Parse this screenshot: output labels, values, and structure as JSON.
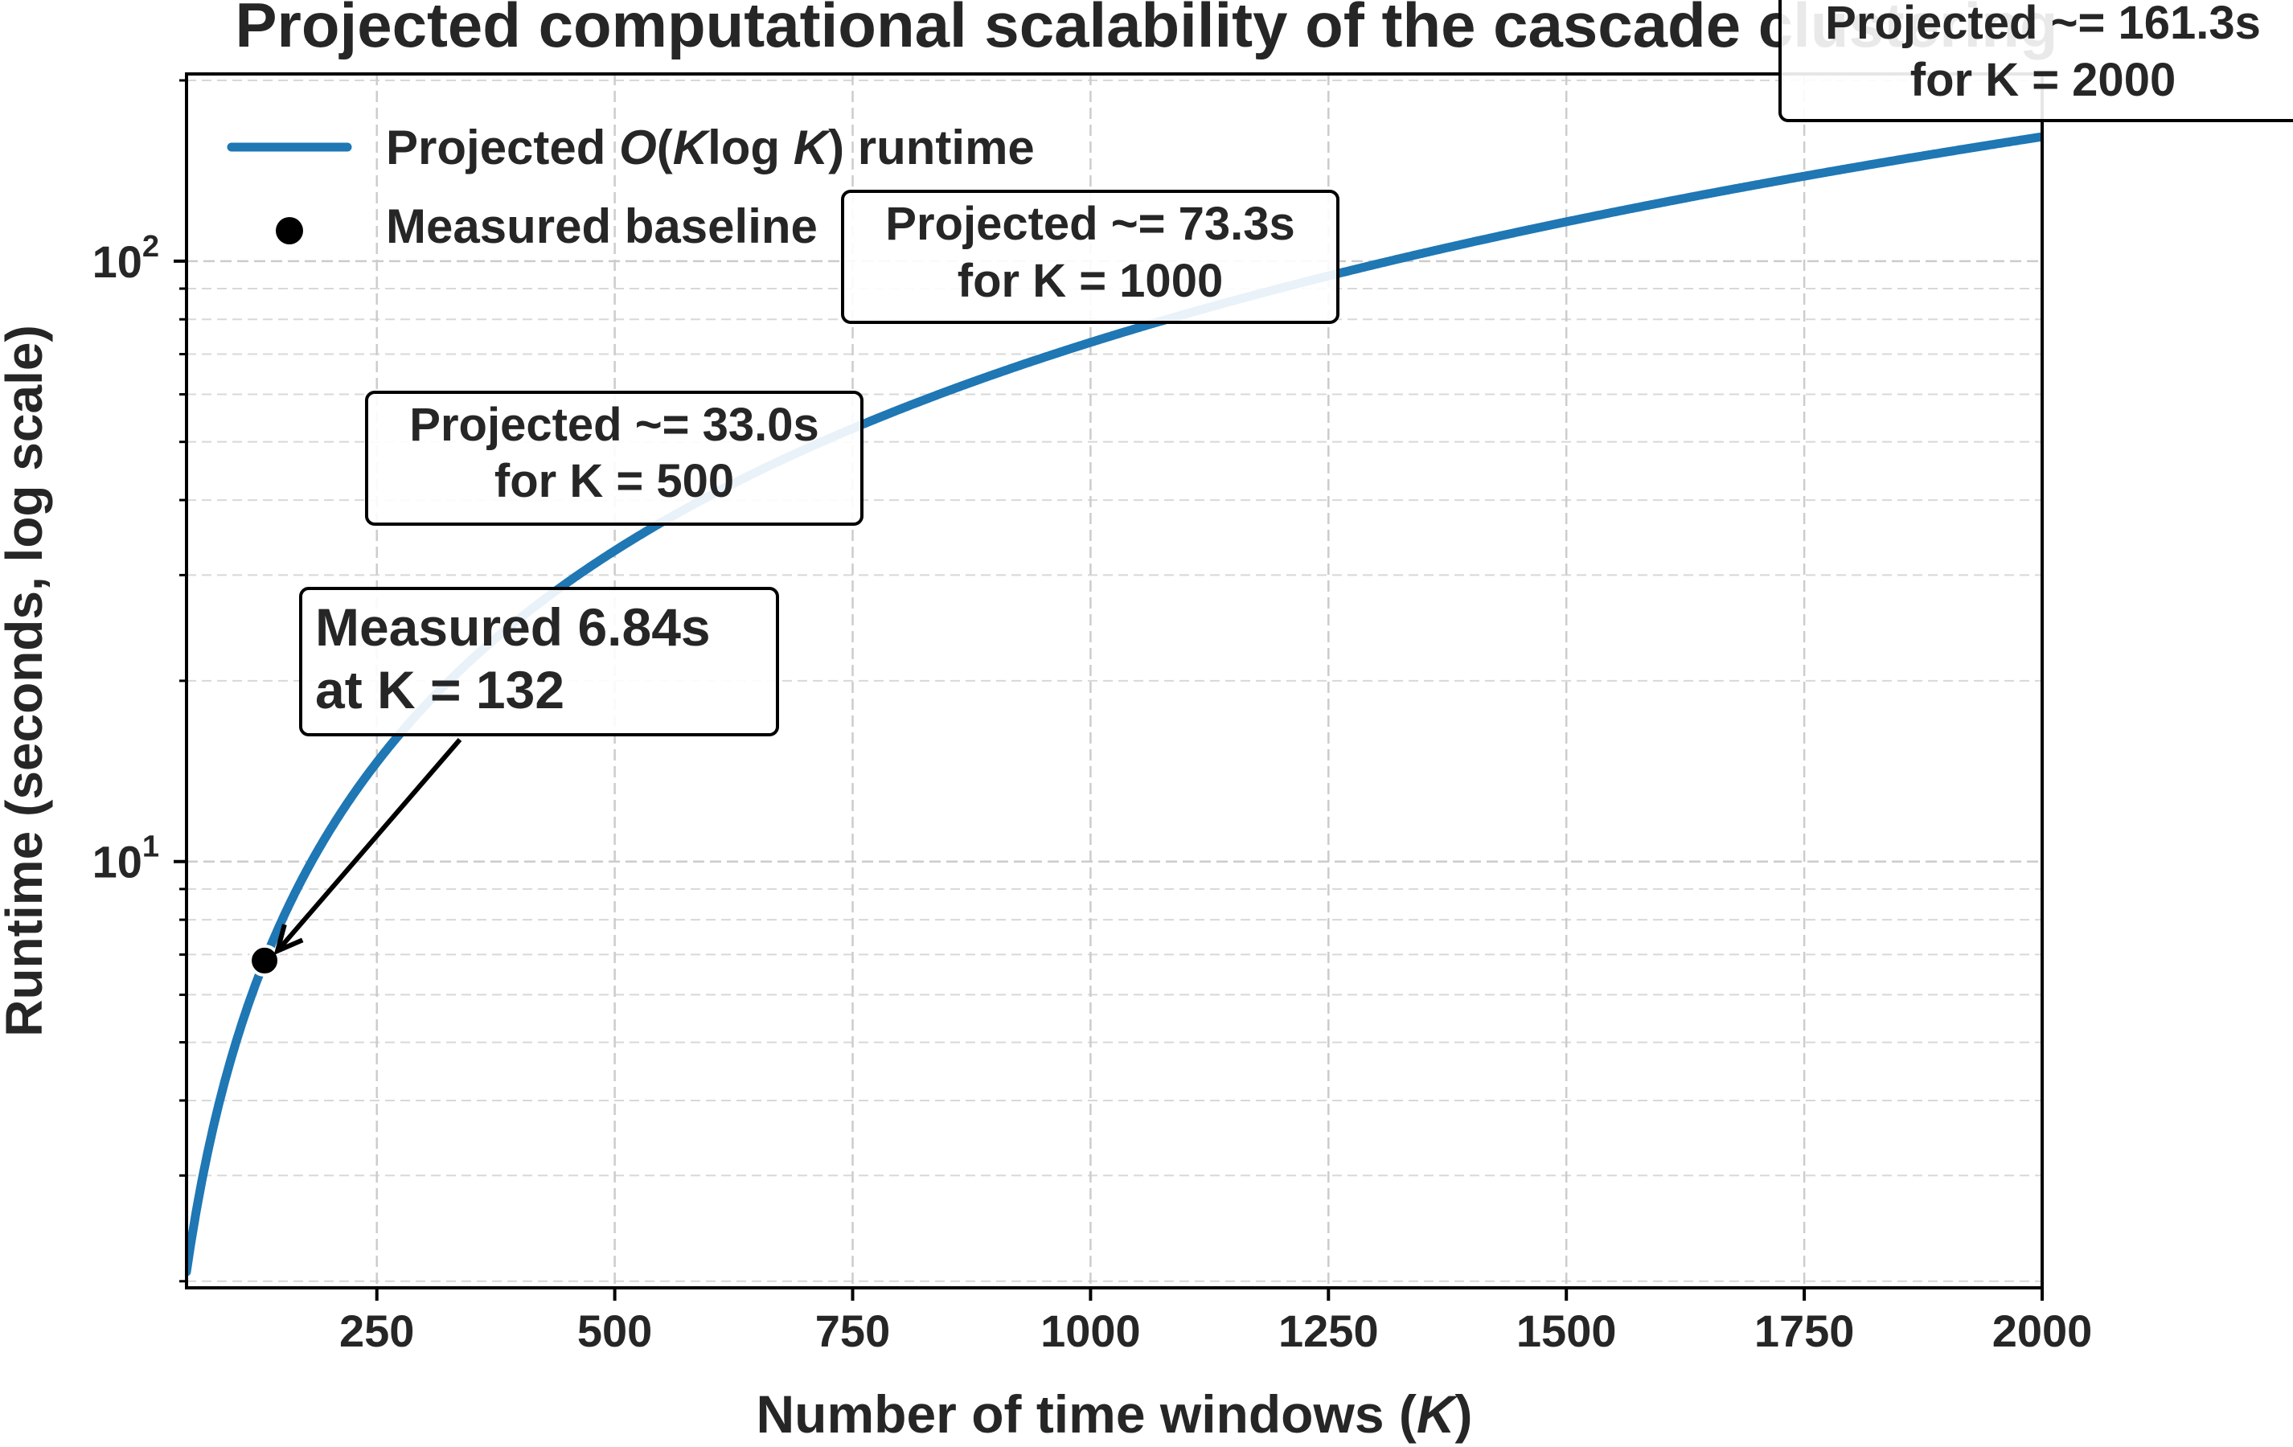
{
  "chart_data": {
    "type": "line",
    "title": "Projected computational scalability of the cascade clustering",
    "xlabel": "Number of time windows (K)",
    "xlabel_parts": {
      "prefix": "Number of time windows (",
      "var": "K",
      "suffix": ")"
    },
    "ylabel": "Runtime (seconds, log scale)",
    "xlim": [
      50,
      2000
    ],
    "ylim": [
      1.95,
      205
    ],
    "yscale": "log",
    "grid": true,
    "legend_location": "upper-left",
    "x_ticks": [
      250,
      500,
      750,
      1000,
      1250,
      1500,
      1750,
      2000
    ],
    "x_tick_labels": [
      "250",
      "500",
      "750",
      "1000",
      "1250",
      "1500",
      "1750",
      "2000"
    ],
    "y_ticks": [
      10,
      100
    ],
    "y_tick_labels": [
      {
        "base": "10",
        "exp": "1"
      },
      {
        "base": "10",
        "exp": "2"
      }
    ],
    "colors": {
      "projection": "#1f77b4",
      "measured": "#000000",
      "grid": "#cccccc",
      "text": "#262626"
    },
    "series": [
      {
        "name": "Projected O(K log K) runtime",
        "legend_parts": {
          "prefix": "Projected ",
          "math": [
            "O",
            "(",
            "K",
            "log",
            " ",
            "K",
            ")"
          ],
          "suffix": " runtime"
        },
        "kind": "line",
        "model": "c * K * ln(K)",
        "coefficient": 0.0106,
        "x": [
          50,
          75,
          100,
          132,
          150,
          200,
          300,
          400,
          500,
          600,
          700,
          800,
          900,
          1000,
          1250,
          1500,
          1750,
          2000
        ],
        "y": [
          2.07,
          3.43,
          4.88,
          6.84,
          7.97,
          11.23,
          18.15,
          25.41,
          32.95,
          40.7,
          48.63,
          56.72,
          64.93,
          73.25,
          94.5,
          116.3,
          138.5,
          161.3
        ]
      },
      {
        "name": "Measured baseline",
        "kind": "scatter",
        "x": [
          132
        ],
        "y": [
          6.84
        ]
      }
    ],
    "annotations": [
      {
        "name": "measured-annotation",
        "lines": [
          "Measured 6.84s",
          "at K = 132"
        ],
        "target": [
          132,
          6.84
        ],
        "arrow": true
      },
      {
        "name": "projection-500",
        "lines": [
          "Projected ~= 33.0s",
          "for K = 500"
        ],
        "target": [
          500,
          33.0
        ],
        "arrow": false
      },
      {
        "name": "projection-1000",
        "lines": [
          "Projected ~= 73.3s",
          "for K = 1000"
        ],
        "target": [
          1000,
          73.3
        ],
        "arrow": false
      },
      {
        "name": "projection-2000",
        "lines": [
          "Projected ~= 161.3s",
          "for K = 2000"
        ],
        "target": [
          2000,
          161.3
        ],
        "arrow": false
      }
    ]
  }
}
